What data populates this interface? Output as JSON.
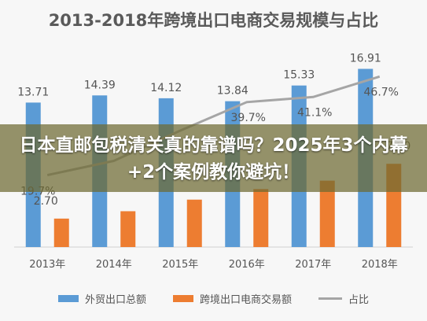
{
  "banner": {
    "text": "日本直邮包税清关真的靠谱吗？2025年3个内幕+2个案例教你避坑！"
  },
  "chart_data": {
    "type": "bar",
    "title": "2013-2018年跨境出口电商交易规模与占比",
    "categories": [
      "2013年",
      "2014年",
      "2015年",
      "2016年",
      "2017年",
      "2018年"
    ],
    "series": [
      {
        "name": "外贸出口总额",
        "values": [
          13.71,
          14.39,
          14.12,
          13.84,
          15.33,
          16.91
        ],
        "labels": [
          "13.71",
          "14.39",
          "14.12",
          "13.84",
          "15.33",
          "16.91"
        ],
        "color": "#5b9bd5"
      },
      {
        "name": "跨境出口电商交易额",
        "values": [
          2.7,
          3.4,
          4.5,
          5.5,
          6.3,
          7.9
        ],
        "labels": [
          "2.70",
          "",
          "",
          "",
          "",
          "7.90"
        ],
        "color": "#ed7d31"
      },
      {
        "name": "占比",
        "values": [
          19.7,
          23.6,
          31.9,
          39.7,
          41.1,
          46.7
        ],
        "labels": [
          "19.7%",
          "",
          "",
          "39.7%",
          "41.1%",
          "46.7%"
        ],
        "color": "#a5a5a5"
      }
    ],
    "ylim": [
      0,
      18
    ],
    "y2lim": [
      0,
      50
    ],
    "grid": true,
    "legend": "bottom"
  }
}
